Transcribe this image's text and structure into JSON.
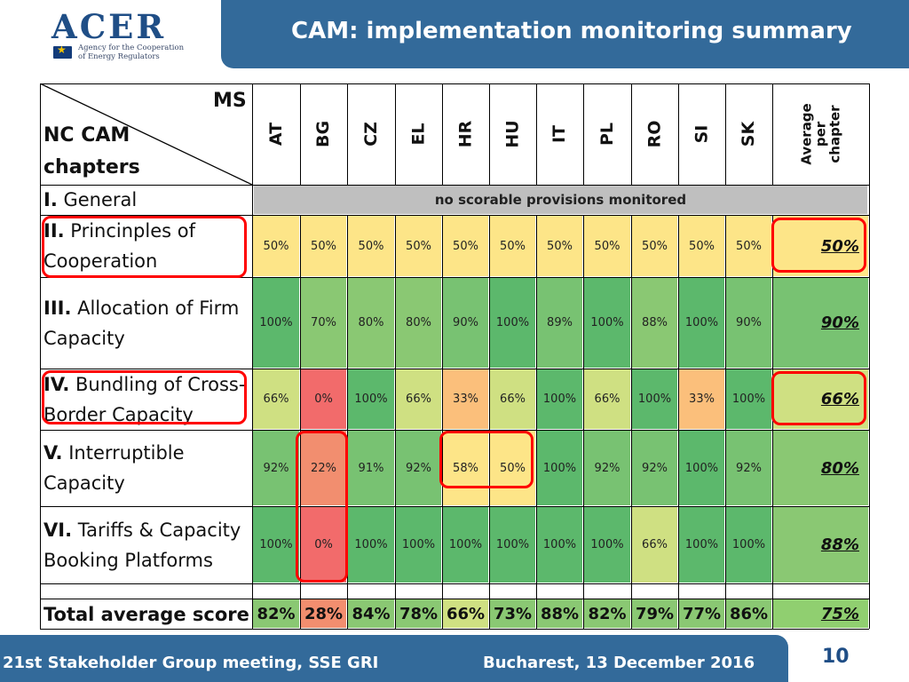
{
  "logo": {
    "wordmark": "ACER",
    "subtitle": "Agency for the Cooperation\nof Energy Regulators"
  },
  "header": {
    "title": "CAM: implementation monitoring summary"
  },
  "table": {
    "corner": {
      "ms": "MS",
      "chapters": "NC CAM\nchapters"
    },
    "columns": [
      "AT",
      "BG",
      "CZ",
      "EL",
      "HR",
      "HU",
      "IT",
      "PL",
      "RO",
      "SI",
      "SK"
    ],
    "average_header": "Average\nper\nchapter",
    "rows": [
      {
        "num": "I.",
        "label": " General",
        "note": "no scorable provisions monitored"
      },
      {
        "num": "II.",
        "label": " Princinples of\n    Cooperation",
        "values": [
          "50%",
          "50%",
          "50%",
          "50%",
          "50%",
          "50%",
          "50%",
          "50%",
          "50%",
          "50%",
          "50%"
        ],
        "average": "50%"
      },
      {
        "num": "III.",
        "label": " Allocation of Firm\n    Capacity",
        "values": [
          "100%",
          "70%",
          "80%",
          "80%",
          "90%",
          "100%",
          "89%",
          "100%",
          "88%",
          "100%",
          "90%"
        ],
        "average": "90%"
      },
      {
        "num": "IV.",
        "label": " Bundling of Cross-\n    Border Capacity",
        "values": [
          "66%",
          "0%",
          "100%",
          "66%",
          "33%",
          "66%",
          "100%",
          "66%",
          "100%",
          "33%",
          "100%"
        ],
        "average": "66%"
      },
      {
        "num": "V.",
        "label": " Interruptible\n   Capacity",
        "values": [
          "92%",
          "22%",
          "91%",
          "92%",
          "58%",
          "50%",
          "100%",
          "92%",
          "92%",
          "100%",
          "92%"
        ],
        "average": "80%"
      },
      {
        "num": "VI.",
        "label": " Tariffs & Capacity\n    Booking Platforms",
        "values": [
          "100%",
          "0%",
          "100%",
          "100%",
          "100%",
          "100%",
          "100%",
          "100%",
          "66%",
          "100%",
          "100%"
        ],
        "average": "88%"
      }
    ],
    "total": {
      "label": "Total average score",
      "values": [
        "82%",
        "28%",
        "84%",
        "78%",
        "66%",
        "73%",
        "88%",
        "82%",
        "79%",
        "77%",
        "86%"
      ],
      "average": "75%"
    }
  },
  "colors": {
    "header_band": "#336a9a",
    "highlight": "#ff0000",
    "score_100": "#5cb86c",
    "score_90": "#78c272",
    "score_80": "#8ac873",
    "score_66": "#cfe082",
    "score_50": "#fde588",
    "score_33": "#fbbf7b",
    "score_22": "#f28e6f",
    "score_0": "#f26b6b",
    "no_score": "#bfbfbf",
    "average_bg": "#90cf70"
  },
  "footer": {
    "left": "21st Stakeholder Group meeting, SSE GRI",
    "right": "Bucharest, 13 December 2016"
  },
  "page_number": "10"
}
